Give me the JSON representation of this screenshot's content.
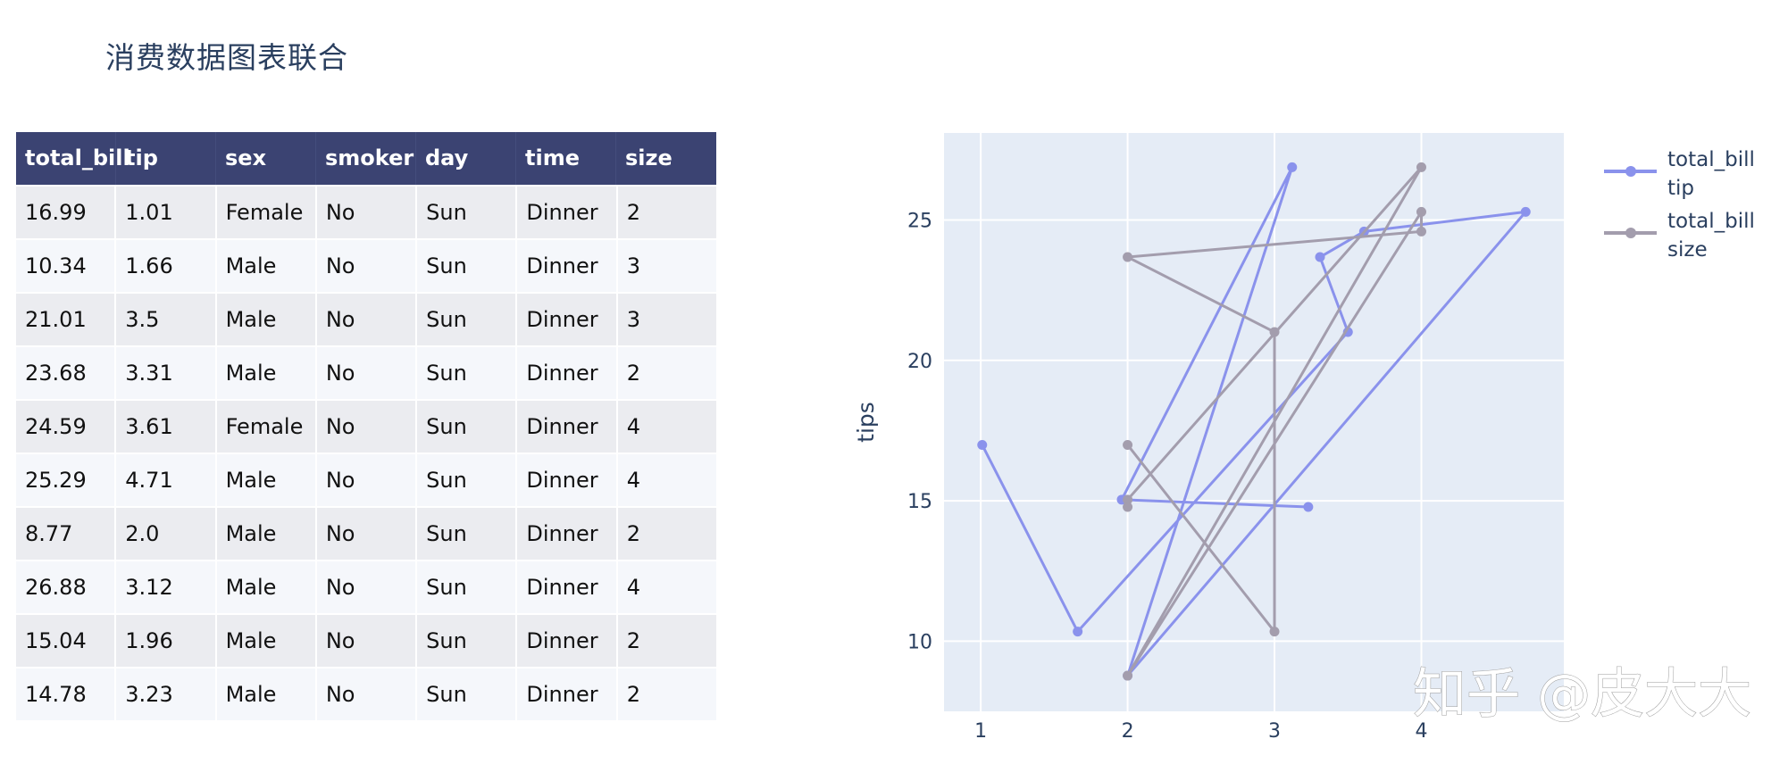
{
  "page": {
    "title": "消费数据图表联合",
    "watermark": "知乎 @皮大大"
  },
  "table": {
    "columns": [
      "total_bill",
      "tip",
      "sex",
      "smoker",
      "day",
      "time",
      "size"
    ],
    "rows": [
      [
        "16.99",
        "1.01",
        "Female",
        "No",
        "Sun",
        "Dinner",
        "2"
      ],
      [
        "10.34",
        "1.66",
        "Male",
        "No",
        "Sun",
        "Dinner",
        "3"
      ],
      [
        "21.01",
        "3.5",
        "Male",
        "No",
        "Sun",
        "Dinner",
        "3"
      ],
      [
        "23.68",
        "3.31",
        "Male",
        "No",
        "Sun",
        "Dinner",
        "2"
      ],
      [
        "24.59",
        "3.61",
        "Female",
        "No",
        "Sun",
        "Dinner",
        "4"
      ],
      [
        "25.29",
        "4.71",
        "Male",
        "No",
        "Sun",
        "Dinner",
        "4"
      ],
      [
        "8.77",
        "2.0",
        "Male",
        "No",
        "Sun",
        "Dinner",
        "2"
      ],
      [
        "26.88",
        "3.12",
        "Male",
        "No",
        "Sun",
        "Dinner",
        "4"
      ],
      [
        "15.04",
        "1.96",
        "Male",
        "No",
        "Sun",
        "Dinner",
        "2"
      ],
      [
        "14.78",
        "3.23",
        "Male",
        "No",
        "Sun",
        "Dinner",
        "2"
      ]
    ],
    "colors": {
      "header_bg": "#3b4372",
      "row_odd": "#ebecf0",
      "row_even": "#f5f7fb"
    }
  },
  "chart_data": {
    "type": "line",
    "title": "",
    "xlabel": "",
    "ylabel": "tips",
    "xlim": [
      0.75,
      4.97
    ],
    "ylim": [
      7.5,
      28.1
    ],
    "x_ticks": [
      1,
      2,
      3,
      4
    ],
    "y_ticks": [
      10,
      15,
      20,
      25
    ],
    "grid": true,
    "legend_position": "right-top",
    "series": [
      {
        "name": "total_bill tip",
        "legend_lines": [
          "total_bill",
          "tip"
        ],
        "color": "#8a92ec",
        "x": [
          1.01,
          1.66,
          3.5,
          3.31,
          3.61,
          4.71,
          2.0,
          3.12,
          1.96,
          3.23
        ],
        "y": [
          16.99,
          10.34,
          21.01,
          23.68,
          24.59,
          25.29,
          8.77,
          26.88,
          15.04,
          14.78
        ]
      },
      {
        "name": "total_bill size",
        "legend_lines": [
          "total_bill",
          "size"
        ],
        "color": "#a39dad",
        "x": [
          2,
          3,
          3,
          2,
          4,
          4,
          2,
          4,
          2,
          2
        ],
        "y": [
          16.99,
          10.34,
          21.01,
          23.68,
          24.59,
          25.29,
          8.77,
          26.88,
          15.04,
          14.78
        ]
      }
    ],
    "plot_bg": "#e5ecf6",
    "grid_color": "#ffffff"
  }
}
